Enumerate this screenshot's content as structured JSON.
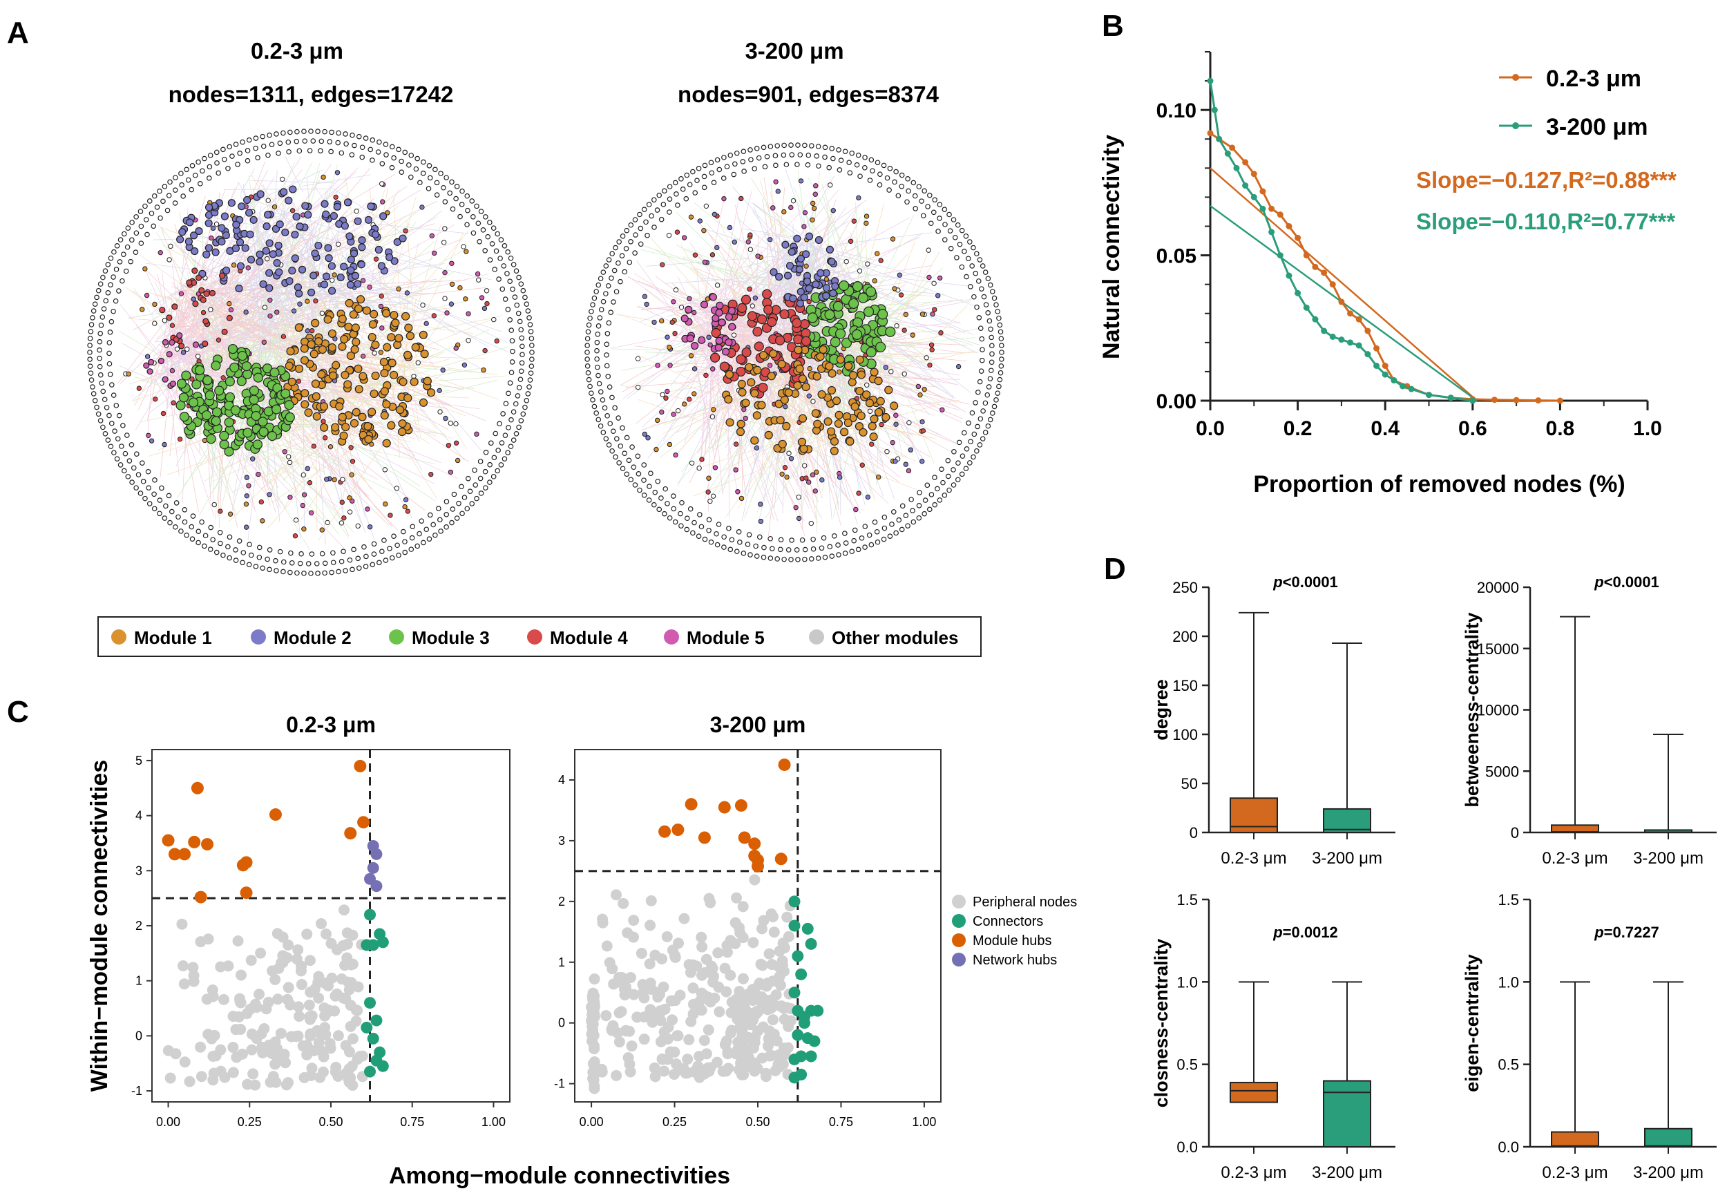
{
  "panel_labels": {
    "A": "A",
    "B": "B",
    "C": "C",
    "D": "D"
  },
  "colors": {
    "orange": "#D2691E",
    "teal": "#2A9D7A",
    "module1": "#D9922E",
    "module2": "#7B7BC8",
    "module3": "#6CC24A",
    "module4": "#D94A4A",
    "module5": "#D05BB0",
    "other": "#C8C8C8",
    "peripheral": "#D0D0D0",
    "connector": "#1F9E77",
    "module_hub": "#D95F02",
    "network_hub": "#7570B3"
  },
  "panelA": {
    "networks": [
      {
        "title": "0.2-3 μm",
        "stats": "nodes=1311, edges=17242"
      },
      {
        "title": "3-200 μm",
        "stats": "nodes=901, edges=8374"
      }
    ],
    "legend": [
      "Module 1",
      "Module 2",
      "Module 3",
      "Module 4",
      "Module 5",
      "Other modules"
    ]
  },
  "chart_data": [
    {
      "id": "B",
      "type": "line",
      "xlabel": "Proportion of removed nodes (%)",
      "ylabel": "Natural connectivity",
      "xlim": [
        0,
        1.0
      ],
      "ylim": [
        0,
        0.12
      ],
      "xticks": [
        "0.0",
        "0.2",
        "0.4",
        "0.6",
        "0.8",
        "1.0"
      ],
      "yticks": [
        "0.00",
        "0.05",
        "0.10"
      ],
      "series": [
        {
          "name": "0.2-3 μm",
          "color_key": "orange",
          "x": [
            0,
            0.02,
            0.05,
            0.08,
            0.1,
            0.12,
            0.14,
            0.16,
            0.18,
            0.2,
            0.22,
            0.24,
            0.26,
            0.28,
            0.3,
            0.32,
            0.34,
            0.36,
            0.38,
            0.4,
            0.42,
            0.45,
            0.5,
            0.55,
            0.6,
            0.65,
            0.7,
            0.75,
            0.8
          ],
          "y": [
            0.092,
            0.09,
            0.087,
            0.082,
            0.078,
            0.072,
            0.066,
            0.064,
            0.06,
            0.056,
            0.05,
            0.046,
            0.044,
            0.04,
            0.034,
            0.03,
            0.028,
            0.024,
            0.018,
            0.012,
            0.007,
            0.005,
            0.002,
            0.001,
            0.0005,
            0.0003,
            0.0002,
            0.0001,
            0
          ]
        },
        {
          "name": "3-200 μm",
          "color_key": "teal",
          "x": [
            0,
            0.01,
            0.02,
            0.04,
            0.06,
            0.08,
            0.1,
            0.12,
            0.14,
            0.16,
            0.18,
            0.2,
            0.22,
            0.24,
            0.26,
            0.28,
            0.3,
            0.32,
            0.34,
            0.36,
            0.38,
            0.4,
            0.42,
            0.44,
            0.46,
            0.5,
            0.55,
            0.6
          ],
          "y": [
            0.11,
            0.1,
            0.09,
            0.085,
            0.08,
            0.074,
            0.07,
            0.066,
            0.058,
            0.05,
            0.043,
            0.037,
            0.032,
            0.028,
            0.024,
            0.022,
            0.021,
            0.02,
            0.019,
            0.016,
            0.012,
            0.009,
            0.007,
            0.005,
            0.004,
            0.002,
            0.001,
            0
          ]
        }
      ],
      "fits": [
        {
          "name": "0.2-3 μm",
          "color_key": "orange",
          "x": [
            0,
            0.61
          ],
          "y": [
            0.08,
            0
          ],
          "label": "Slope=−0.127,R²=0.88***"
        },
        {
          "name": "3-200 μm",
          "color_key": "teal",
          "x": [
            0,
            0.61
          ],
          "y": [
            0.067,
            0
          ],
          "label": "Slope=−0.110,R²=0.77***"
        }
      ],
      "legend": [
        "0.2-3 μm",
        "3-200 μm"
      ]
    },
    {
      "id": "C",
      "type": "scatter",
      "xlabel": "Among−module connectivities",
      "ylabel": "Within−module connectivities",
      "threshold_x": 0.62,
      "threshold_y": 2.5,
      "legend": [
        "Peripheral nodes",
        "Connectors",
        "Module hubs",
        "Network hubs"
      ],
      "plots": [
        {
          "title": "0.2-3 μm",
          "xlim": [
            -0.05,
            1.05
          ],
          "ylim": [
            -1.2,
            5.2
          ],
          "xticks": [
            "0.00",
            "0.25",
            "0.50",
            "0.75",
            "1.00"
          ],
          "yticks": [
            "-1",
            "0",
            "1",
            "2",
            "3",
            "4",
            "5"
          ],
          "module_hubs": [
            [
              0.0,
              3.55
            ],
            [
              0.02,
              3.3
            ],
            [
              0.05,
              3.3
            ],
            [
              0.08,
              3.52
            ],
            [
              0.09,
              4.5
            ],
            [
              0.12,
              3.48
            ],
            [
              0.1,
              2.52
            ],
            [
              0.23,
              3.1
            ],
            [
              0.24,
              3.15
            ],
            [
              0.24,
              2.6
            ],
            [
              0.33,
              4.02
            ],
            [
              0.56,
              3.68
            ],
            [
              0.59,
              4.9
            ],
            [
              0.6,
              3.88
            ]
          ],
          "network_hubs": [
            [
              0.63,
              3.45
            ],
            [
              0.64,
              3.3
            ],
            [
              0.63,
              3.05
            ],
            [
              0.62,
              2.85
            ],
            [
              0.64,
              2.72
            ]
          ],
          "connectors": [
            [
              0.62,
              2.2
            ],
            [
              0.61,
              1.65
            ],
            [
              0.63,
              1.65
            ],
            [
              0.65,
              1.85
            ],
            [
              0.66,
              1.7
            ],
            [
              0.62,
              0.6
            ],
            [
              0.64,
              0.28
            ],
            [
              0.61,
              0.15
            ],
            [
              0.63,
              -0.05
            ],
            [
              0.65,
              -0.3
            ],
            [
              0.64,
              -0.45
            ],
            [
              0.62,
              -0.65
            ],
            [
              0.66,
              -0.55
            ]
          ],
          "peripheral_count": 190,
          "peripheral_seed": 7
        },
        {
          "title": "3-200 μm",
          "xlim": [
            -0.05,
            1.05
          ],
          "ylim": [
            -1.3,
            4.5
          ],
          "xticks": [
            "0.00",
            "0.25",
            "0.50",
            "0.75",
            "1.00"
          ],
          "yticks": [
            "-1",
            "0",
            "1",
            "2",
            "3",
            "4"
          ],
          "module_hubs": [
            [
              0.22,
              3.15
            ],
            [
              0.26,
              3.18
            ],
            [
              0.3,
              3.6
            ],
            [
              0.34,
              3.05
            ],
            [
              0.4,
              3.55
            ],
            [
              0.45,
              3.58
            ],
            [
              0.46,
              3.05
            ],
            [
              0.49,
              2.95
            ],
            [
              0.49,
              2.75
            ],
            [
              0.5,
              2.68
            ],
            [
              0.5,
              2.58
            ],
            [
              0.57,
              2.7
            ],
            [
              0.58,
              4.25
            ]
          ],
          "network_hubs": [],
          "connectors": [
            [
              0.61,
              2.0
            ],
            [
              0.61,
              1.6
            ],
            [
              0.65,
              1.55
            ],
            [
              0.66,
              1.3
            ],
            [
              0.62,
              1.1
            ],
            [
              0.63,
              0.8
            ],
            [
              0.61,
              0.5
            ],
            [
              0.62,
              0.2
            ],
            [
              0.64,
              0.0
            ],
            [
              0.66,
              0.2
            ],
            [
              0.68,
              0.2
            ],
            [
              0.62,
              -0.2
            ],
            [
              0.65,
              -0.25
            ],
            [
              0.67,
              -0.3
            ],
            [
              0.61,
              -0.6
            ],
            [
              0.63,
              -0.55
            ],
            [
              0.66,
              -0.55
            ],
            [
              0.61,
              -0.9
            ],
            [
              0.63,
              -0.85
            ],
            [
              0.64,
              0.1
            ]
          ],
          "peripheral_count": 330,
          "peripheral_seed": 13
        }
      ]
    },
    {
      "id": "D",
      "type": "box",
      "categories": [
        "0.2-3 μm",
        "3-200 μm"
      ],
      "plots": [
        {
          "ylabel": "degree",
          "p": "<0.0001",
          "ylim": [
            0,
            250
          ],
          "yticks": [
            "0",
            "50",
            "100",
            "150",
            "200",
            "250"
          ],
          "boxes": [
            {
              "min": 0,
              "q1": 0,
              "median": 6,
              "q3": 35,
              "max": 224
            },
            {
              "min": 0,
              "q1": 0,
              "median": 3,
              "q3": 24,
              "max": 193
            }
          ]
        },
        {
          "ylabel": "betweeness-centrality",
          "p": "<0.0001",
          "ylim": [
            0,
            20000
          ],
          "yticks": [
            "0",
            "5000",
            "10000",
            "15000",
            "20000"
          ],
          "boxes": [
            {
              "min": 0,
              "q1": 0,
              "median": 50,
              "q3": 600,
              "max": 17600
            },
            {
              "min": 0,
              "q1": 0,
              "median": 20,
              "q3": 200,
              "max": 8000
            }
          ]
        },
        {
          "ylabel": "closness-centrality",
          "p": "=0.0012",
          "ylim": [
            0,
            1.5
          ],
          "yticks": [
            "0.0",
            "0.5",
            "1.0",
            "1.5"
          ],
          "boxes": [
            {
              "min": 0,
              "q1": 0.27,
              "median": 0.34,
              "q3": 0.39,
              "max": 1.0
            },
            {
              "min": 0,
              "q1": 0,
              "median": 0.33,
              "q3": 0.4,
              "max": 1.0
            }
          ]
        },
        {
          "ylabel": "eigen-centrality",
          "p": "=0.7227",
          "ylim": [
            0,
            1.5
          ],
          "yticks": [
            "0.0",
            "0.5",
            "1.0",
            "1.5"
          ],
          "boxes": [
            {
              "min": 0,
              "q1": 0,
              "median": 0.005,
              "q3": 0.09,
              "max": 1.0
            },
            {
              "min": 0,
              "q1": 0,
              "median": 0.005,
              "q3": 0.11,
              "max": 1.0
            }
          ]
        }
      ]
    }
  ]
}
